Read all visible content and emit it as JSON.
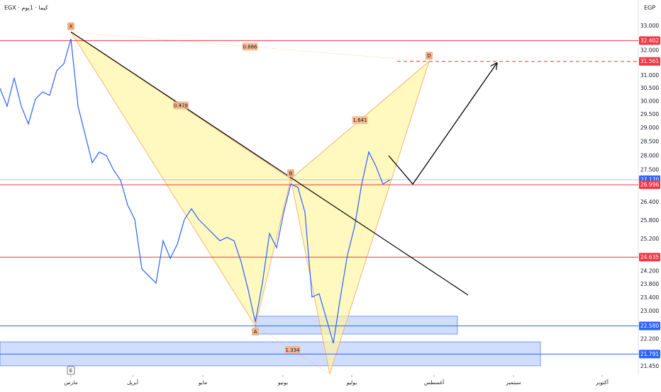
{
  "chart_data": {
    "type": "line",
    "title": "EGX · كيما · 1يوم",
    "currency": "EGP",
    "log_scale": true,
    "grid": false,
    "x": [
      -20,
      -18,
      -16,
      -14,
      -12,
      -10,
      -8,
      -6,
      -4,
      -2,
      0,
      2,
      4,
      6,
      8,
      10,
      12,
      14,
      16,
      18,
      20,
      22,
      24,
      26,
      28,
      30,
      32,
      34,
      36,
      38,
      40,
      42,
      44,
      46,
      48,
      50,
      52,
      54,
      56,
      58,
      60,
      62,
      64,
      66,
      68,
      70,
      72,
      74,
      76,
      78,
      80,
      82,
      84,
      86,
      88,
      90
    ],
    "series": [
      {
        "color": "#2962ff",
        "values": [
          30.5,
          29.82,
          30.91,
          29.82,
          29.16,
          30.09,
          30.36,
          30.23,
          31.19,
          31.47,
          32.47,
          29.82,
          28.77,
          27.76,
          28.14,
          28.01,
          27.51,
          27.15,
          26.31,
          25.84,
          24.27,
          24.05,
          23.84,
          25.15,
          24.6,
          25.04,
          25.84,
          26.19,
          25.84,
          25.61,
          25.38,
          25.15,
          25.26,
          25.15,
          24.49,
          23.63,
          22.69,
          23.84,
          25.38,
          24.93,
          26.07,
          27.02,
          26.91,
          26.07,
          23.42,
          23.52,
          22.8,
          22.09,
          23.42,
          24.71,
          25.61,
          27.02,
          28.14,
          27.64,
          27.02,
          27.17
        ]
      }
    ],
    "xlim": [
      -20,
      160
    ],
    "xticks": [
      {
        "value": 0,
        "label": "مارس"
      },
      {
        "value": 17.4,
        "label": "أبريل"
      },
      {
        "value": 37.2,
        "label": "مايو"
      },
      {
        "value": 59.8,
        "label": "يونيو"
      },
      {
        "value": 79.2,
        "label": "يوليو"
      },
      {
        "value": 102.4,
        "label": "أغسطس"
      },
      {
        "value": 124.8,
        "label": "سبتمبر"
      },
      {
        "value": 149.8,
        "label": "أكتوبر"
      }
    ],
    "ylim": [
      21.22,
      34.11
    ],
    "yticks": [
      {
        "value": 33,
        "label": "33.000"
      },
      {
        "value": 32,
        "label": "32.000"
      },
      {
        "value": 31,
        "label": "31.000"
      },
      {
        "value": 30.5,
        "label": "30.500"
      },
      {
        "value": 30,
        "label": "30.000"
      },
      {
        "value": 29.5,
        "label": "29.500"
      },
      {
        "value": 29,
        "label": "29.000"
      },
      {
        "value": 28.5,
        "label": "28.500"
      },
      {
        "value": 28,
        "label": "28.000"
      },
      {
        "value": 27.5,
        "label": "27.500"
      },
      {
        "value": 26.4,
        "label": "26.400"
      },
      {
        "value": 25.8,
        "label": "25.800"
      },
      {
        "value": 25.2,
        "label": "25.200"
      },
      {
        "value": 24.2,
        "label": "24.200"
      },
      {
        "value": 23.8,
        "label": "23.800"
      },
      {
        "value": 23.4,
        "label": "23.400"
      },
      {
        "value": 23,
        "label": "23.000"
      },
      {
        "value": 22.2,
        "label": "22.200"
      },
      {
        "value": 21.45,
        "label": "21.450"
      }
    ],
    "levels": [
      {
        "value": 32.402,
        "label": "32.402",
        "color": "#f23645",
        "dashed": false,
        "start": -20
      },
      {
        "value": 31.561,
        "label": "31.561",
        "color": "#f23645",
        "dashed": true,
        "start": 92
      },
      {
        "value": 27.17,
        "label": "27.170",
        "color": "#2962ff",
        "dashed": false,
        "start": -20
      },
      {
        "value": 26.996,
        "label": "26.996",
        "color": "#f23645",
        "dashed": false,
        "start": -20
      },
      {
        "value": 24.635,
        "label": "24.635",
        "color": "#f23645",
        "dashed": false,
        "start": -20
      },
      {
        "value": 22.58,
        "label": "22.580",
        "color": "#2962ff",
        "dashed": false,
        "start": -20
      },
      {
        "value": 21.791,
        "label": "21.791",
        "color": "#2962ff",
        "dashed": false,
        "start": -20
      }
    ],
    "zones": [
      {
        "x": [
          52,
          109
        ],
        "y": [
          22.35,
          22.86
        ],
        "color": "#2962ff"
      },
      {
        "x": [
          -20,
          132.4
        ],
        "y": [
          21.47,
          22.13
        ],
        "color": "#2962ff"
      }
    ],
    "points": [
      {
        "label": "X",
        "x": 0,
        "y": 32.76
      },
      {
        "label": "A",
        "x": 52,
        "y": 22.58
      },
      {
        "label": "B",
        "x": 62,
        "y": 27.2
      },
      {
        "label": null,
        "x": 73,
        "y": 21.25
      },
      {
        "label": "D",
        "x": 101,
        "y": 31.561
      }
    ],
    "ratios": [
      {
        "value": 0.886,
        "between": [
          0,
          4
        ]
      },
      {
        "value": 0.478,
        "between": [
          0,
          2
        ]
      },
      {
        "value": 1.641,
        "between": [
          2,
          4
        ]
      },
      {
        "value": 1.334,
        "between": [
          1,
          3
        ]
      }
    ],
    "trendline": {
      "x": [
        0,
        112
      ],
      "y": [
        32.76,
        23.48
      ]
    },
    "projection": {
      "x": [
        89.6,
        96.4,
        120
      ],
      "y": [
        28.01,
        27.02,
        31.47
      ]
    },
    "event": {
      "label": "E",
      "x": 0
    }
  }
}
